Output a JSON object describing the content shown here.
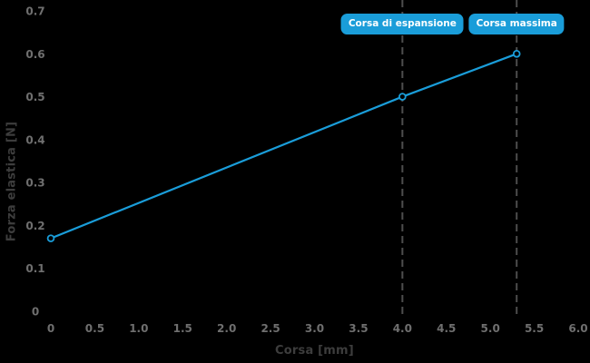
{
  "chart": {
    "background": "#000000",
    "line_color": "#1a9dd9",
    "marker_fill": "#000000",
    "dashed_line_color": "#4d4d4d",
    "tick_label_color": "#6f6f6f",
    "axis_title_color": "#3d3d3d",
    "badge_bg": "#1a9dd9",
    "badge_text_color": "#ffffff"
  },
  "chart_data": {
    "type": "line",
    "title": "",
    "xlabel": "Corsa [mm]",
    "ylabel": "Forza elastica [N]",
    "xlim": [
      0,
      6
    ],
    "ylim": [
      0,
      0.7
    ],
    "x_ticks": [
      "0",
      "0.5",
      "1.0",
      "1.5",
      "2.0",
      "2.5",
      "3.0",
      "3.5",
      "4.0",
      "4.5",
      "5.0",
      "5.5",
      "6.0"
    ],
    "y_ticks": [
      "0",
      "0.1",
      "0.2",
      "0.3",
      "0.4",
      "0.5",
      "0.6",
      "0.7"
    ],
    "grid": false,
    "legend": "none",
    "series": [
      {
        "name": "forza-elastica-vs-corsa",
        "x": [
          0,
          4.0,
          5.3
        ],
        "y": [
          0.17,
          0.5,
          0.6
        ],
        "marker": "open-circle"
      }
    ],
    "annotations": [
      {
        "label": "Corsa di espansione",
        "x": 4.0,
        "style": "vertical-dashed-line-badge"
      },
      {
        "label": "Corsa massima",
        "x": 5.3,
        "style": "vertical-dashed-line-badge"
      }
    ]
  }
}
